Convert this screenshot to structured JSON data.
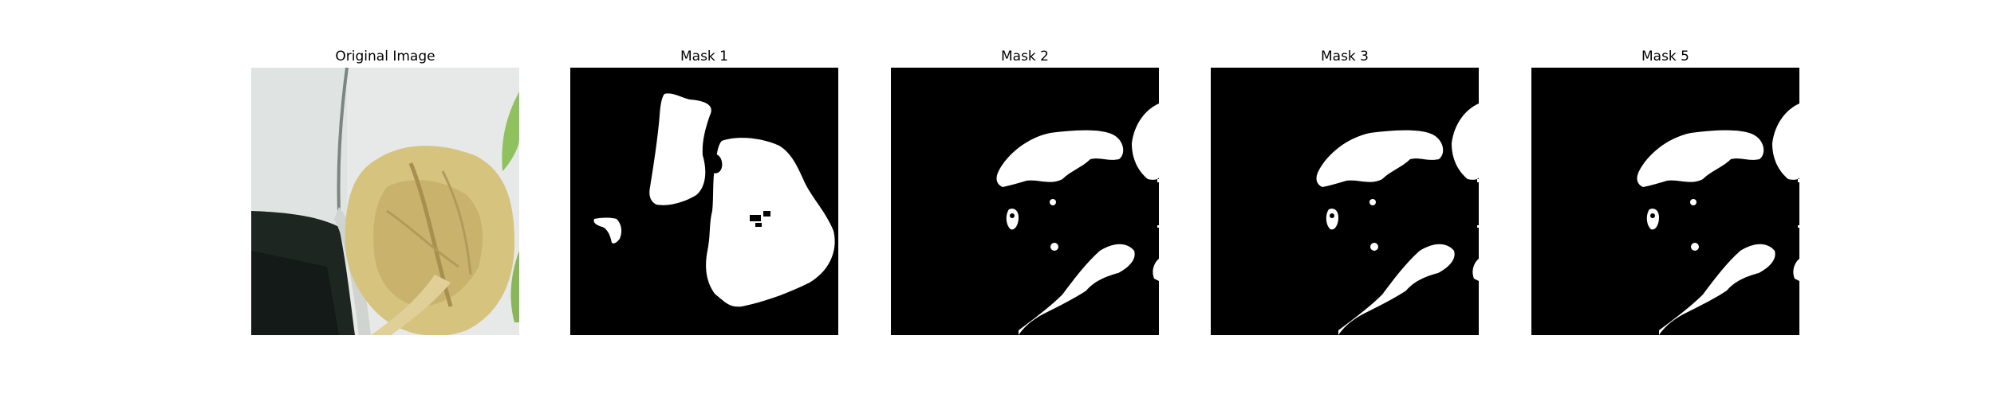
{
  "panels": [
    {
      "title": "Original Image",
      "kind": "photo"
    },
    {
      "title": "Mask 1",
      "kind": "mask"
    },
    {
      "title": "Mask 2",
      "kind": "mask"
    },
    {
      "title": "Mask 3",
      "kind": "mask"
    },
    {
      "title": "Mask 5",
      "kind": "mask"
    }
  ],
  "colors": {
    "mask_background": "#000000",
    "mask_foreground": "#ffffff",
    "leaf": "#d6c37e",
    "leaf_shadow": "#a98f4f",
    "wall": "#e9ecea",
    "dark_area": "#1c2420",
    "green_leaf": "#8fc25f"
  }
}
